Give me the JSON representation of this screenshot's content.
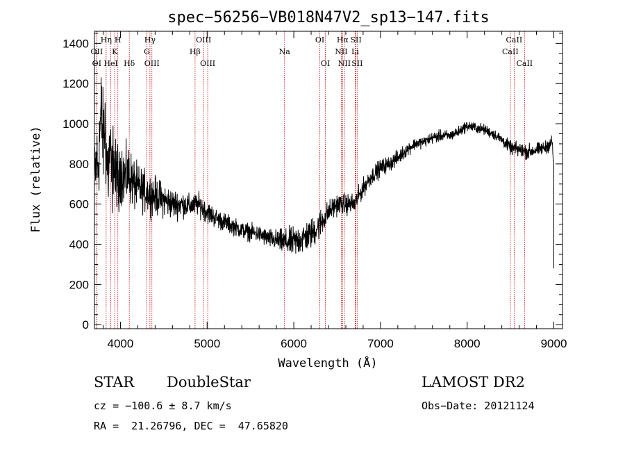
{
  "chart_data": {
    "type": "line",
    "title": "spec−56256−VB018N47V2_sp13−147.fits",
    "xlabel": "Wavelength (Å)",
    "ylabel": "Flux (relative)",
    "xlim": [
      3700,
      9100
    ],
    "ylim": [
      -20,
      1460
    ],
    "xticks": [
      4000,
      5000,
      6000,
      7000,
      8000,
      9000
    ],
    "yticks": [
      0,
      200,
      400,
      600,
      800,
      1000,
      1200,
      1400
    ],
    "series": [
      {
        "name": "flux",
        "x": [
          3700,
          3720,
          3740,
          3760,
          3780,
          3800,
          3820,
          3840,
          3860,
          3880,
          3900,
          3920,
          3940,
          3960,
          3980,
          4000,
          4050,
          4100,
          4150,
          4200,
          4300,
          4400,
          4500,
          4600,
          4700,
          4800,
          4900,
          5000,
          5100,
          5200,
          5300,
          5400,
          5500,
          5600,
          5700,
          5800,
          5900,
          6000,
          6100,
          6200,
          6300,
          6400,
          6500,
          6600,
          6700,
          6800,
          6900,
          7000,
          7100,
          7200,
          7300,
          7400,
          7500,
          7600,
          7700,
          7800,
          7900,
          8000,
          8100,
          8200,
          8300,
          8400,
          8500,
          8600,
          8700,
          8800,
          8900,
          8980,
          9000
        ],
        "y": [
          700,
          820,
          760,
          950,
          1060,
          900,
          1010,
          820,
          760,
          900,
          700,
          860,
          720,
          780,
          640,
          780,
          730,
          750,
          700,
          680,
          660,
          640,
          620,
          600,
          600,
          590,
          600,
          560,
          530,
          510,
          490,
          470,
          460,
          450,
          430,
          420,
          410,
          410,
          430,
          450,
          500,
          560,
          600,
          600,
          600,
          680,
          740,
          780,
          800,
          830,
          870,
          900,
          910,
          930,
          940,
          940,
          960,
          990,
          980,
          970,
          950,
          920,
          880,
          870,
          860,
          870,
          880,
          910,
          780
        ],
        "noise_amplitude": [
          220,
          240,
          240,
          260,
          260,
          260,
          240,
          240,
          240,
          220,
          220,
          200,
          200,
          200,
          180,
          170,
          160,
          150,
          140,
          120,
          110,
          100,
          90,
          80,
          70,
          60,
          60,
          60,
          50,
          50,
          45,
          45,
          45,
          45,
          50,
          55,
          70,
          80,
          85,
          80,
          80,
          60,
          55,
          55,
          55,
          50,
          45,
          45,
          40,
          40,
          35,
          30,
          30,
          30,
          30,
          28,
          28,
          28,
          28,
          28,
          28,
          30,
          35,
          40,
          40,
          35,
          35,
          40,
          40
        ]
      }
    ],
    "spectral_lines": [
      {
        "label": "OII",
        "x": 3727,
        "row": 2
      },
      {
        "label": "OI",
        "x": 3727,
        "row": 3
      },
      {
        "label": "Hη",
        "x": 3835,
        "row": 1
      },
      {
        "label": "HeI",
        "x": 3889,
        "row": 3
      },
      {
        "label": "H",
        "x": 3970,
        "row": 1
      },
      {
        "label": "K",
        "x": 3934,
        "row": 2
      },
      {
        "label": "Hδ",
        "x": 4102,
        "row": 3
      },
      {
        "label": "Hγ",
        "x": 4340,
        "row": 1
      },
      {
        "label": "G",
        "x": 4305,
        "row": 2
      },
      {
        "label": "OIII",
        "x": 4363,
        "row": 3
      },
      {
        "label": "Hβ",
        "x": 4861,
        "row": 2
      },
      {
        "label": "OIII",
        "x": 4959,
        "row": 1
      },
      {
        "label": "OIII",
        "x": 5007,
        "row": 3
      },
      {
        "label": "Na",
        "x": 5893,
        "row": 2
      },
      {
        "label": "OI",
        "x": 6300,
        "row": 1
      },
      {
        "label": "OI",
        "x": 6364,
        "row": 3
      },
      {
        "label": "Hα",
        "x": 6563,
        "row": 1
      },
      {
        "label": "NII",
        "x": 6548,
        "row": 2
      },
      {
        "label": "NII",
        "x": 6584,
        "row": 3
      },
      {
        "label": "SII",
        "x": 6717,
        "row": 1
      },
      {
        "label": "Li",
        "x": 6708,
        "row": 2
      },
      {
        "label": "SII",
        "x": 6731,
        "row": 3
      },
      {
        "label": "CaII",
        "x": 8542,
        "row": 1
      },
      {
        "label": "CaII",
        "x": 8498,
        "row": 2
      },
      {
        "label": "CaII",
        "x": 8662,
        "row": 3
      }
    ]
  },
  "info": {
    "object_class": "STAR",
    "subclass": "DoubleStar",
    "survey": "LAMOST DR2",
    "redshift": "cz = −100.6 ± 8.7 km/s",
    "obs_date": "Obs−Date: 20121124",
    "coords": "RA =  21.26796, DEC =  47.65820"
  },
  "colors": {
    "line_marker": "#c00000",
    "spectrum": "#000000",
    "axis": "#000000"
  }
}
